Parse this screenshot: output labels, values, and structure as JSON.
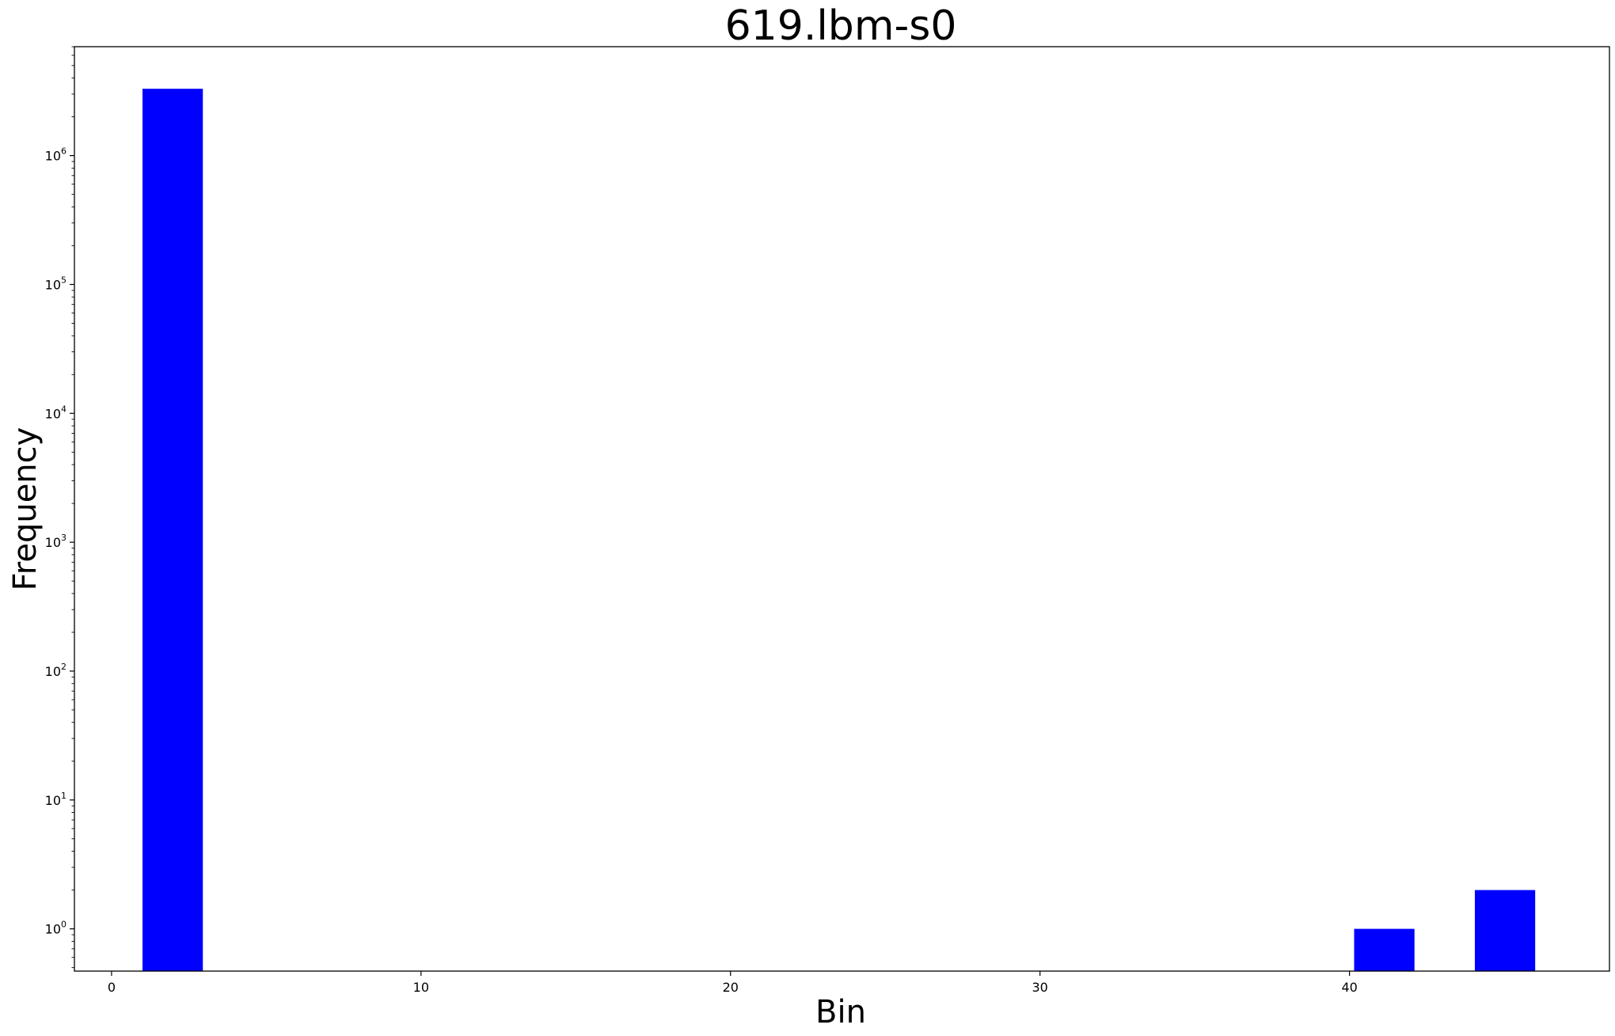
{
  "chart_data": {
    "type": "bar",
    "title": "619.lbm-s0",
    "xlabel": "Bin",
    "ylabel": "Frequency",
    "yscale": "log",
    "xlim": [
      -1.2,
      48.4
    ],
    "ylim": [
      0.47,
      7000000
    ],
    "grid": false,
    "legend": "none",
    "bar_color": "#0000ff",
    "x_ticks": [
      0,
      10,
      20,
      30,
      40
    ],
    "y_ticks": [
      {
        "value": 1,
        "base": "10",
        "exp": "0"
      },
      {
        "value": 10,
        "base": "10",
        "exp": "1"
      },
      {
        "value": 100,
        "base": "10",
        "exp": "2"
      },
      {
        "value": 1000,
        "base": "10",
        "exp": "3"
      },
      {
        "value": 10000,
        "base": "10",
        "exp": "4"
      },
      {
        "value": 100000,
        "base": "10",
        "exp": "5"
      },
      {
        "value": 1000000,
        "base": "10",
        "exp": "6"
      }
    ],
    "bars": [
      {
        "x_start": 1.0,
        "x_end": 2.95,
        "value": 3300000
      },
      {
        "x_start": 40.15,
        "x_end": 42.1,
        "value": 1
      },
      {
        "x_start": 44.05,
        "x_end": 46.0,
        "value": 2
      }
    ]
  }
}
